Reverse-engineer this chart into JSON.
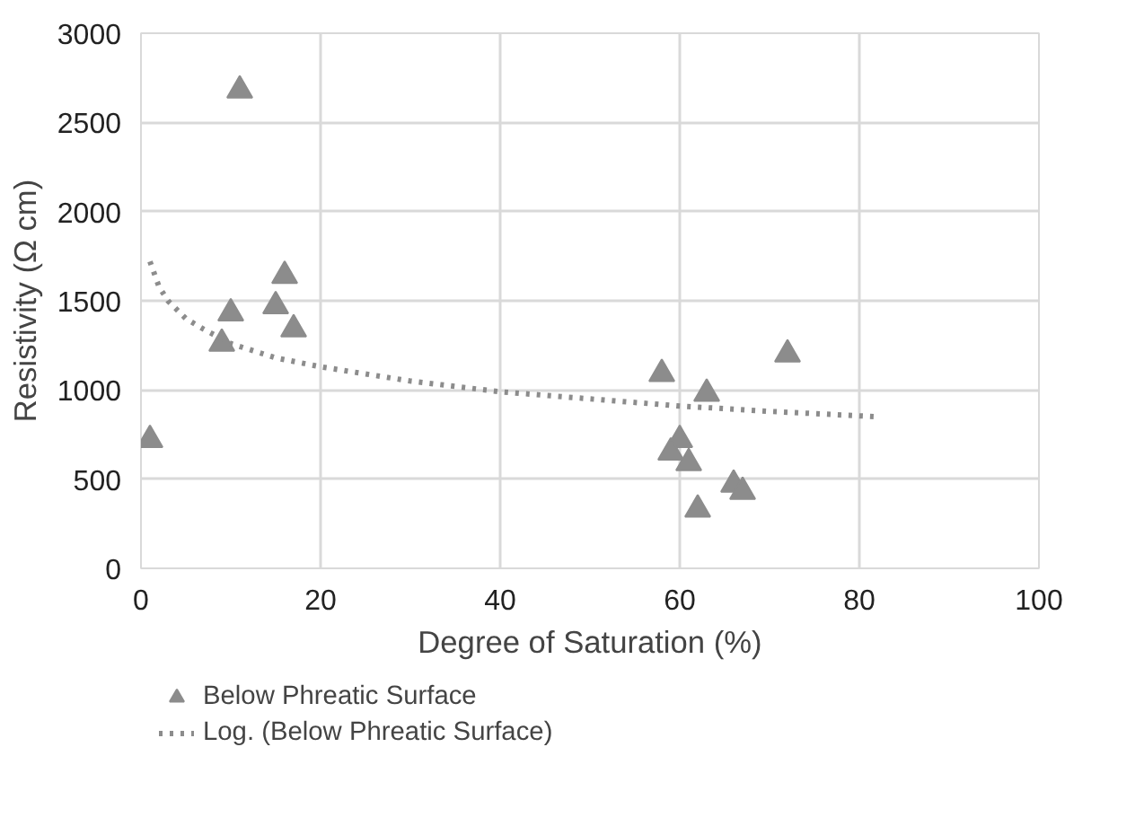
{
  "chart_data": {
    "type": "scatter",
    "xlabel": "Degree of Saturation (%)",
    "ylabel": "Resistivity (Ω cm)",
    "xlim": [
      0,
      100
    ],
    "ylim": [
      0,
      3000
    ],
    "xticks": [
      0,
      20,
      40,
      60,
      80,
      100
    ],
    "yticks": [
      0,
      500,
      1000,
      1500,
      2000,
      2500,
      3000
    ],
    "grid": true,
    "legend": "bottom",
    "series": [
      {
        "name": "Below Phreatic Surface",
        "color": "#8c8c8c",
        "marker": "triangle",
        "x": [
          1,
          11,
          9,
          10,
          15,
          16,
          17,
          58,
          63,
          72,
          60,
          59,
          61,
          66,
          67,
          62
        ],
        "values": [
          720,
          2680,
          1260,
          1430,
          1470,
          1640,
          1340,
          1090,
          980,
          1200,
          720,
          650,
          590,
          470,
          430,
          330
        ]
      },
      {
        "name": "Log. (Below Phreatic Surface)",
        "color": "#8c8c8c",
        "type": "line",
        "line_style": "dotted",
        "x": [
          1,
          2,
          3,
          5,
          7,
          10,
          15,
          20,
          30,
          40,
          50,
          60,
          70,
          82
        ],
        "values": [
          1720,
          1580,
          1500,
          1400,
          1340,
          1260,
          1180,
          1130,
          1050,
          990,
          950,
          910,
          880,
          850
        ]
      }
    ]
  }
}
